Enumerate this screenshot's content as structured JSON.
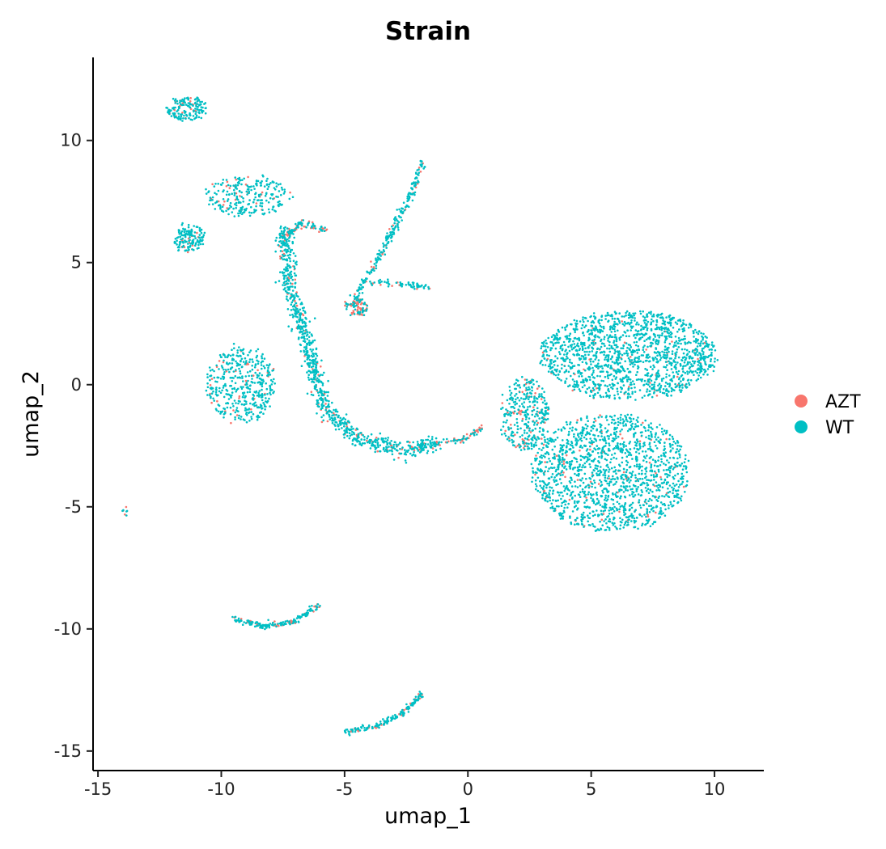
{
  "chart_data": {
    "type": "scatter",
    "title": "Strain",
    "xlabel": "umap_1",
    "ylabel": "umap_2",
    "xlim": [
      -15.2,
      12.0
    ],
    "ylim": [
      -15.8,
      13.4
    ],
    "xticks": [
      -15,
      -10,
      -5,
      0,
      5,
      10
    ],
    "xtick_labels": [
      "-15",
      "-10",
      "-5",
      "0",
      "5",
      "10"
    ],
    "yticks": [
      -15,
      -10,
      -5,
      0,
      5,
      10
    ],
    "ytick_labels": [
      "-15",
      "-10",
      "-5",
      "0",
      "5",
      "10"
    ],
    "grid": false,
    "legend_position": "right",
    "series": [
      {
        "name": "AZT",
        "color": "#F8766D"
      },
      {
        "name": "WT",
        "color": "#00BFC4"
      }
    ],
    "clusters": [
      {
        "name": "top-left-upper",
        "cx": -11.4,
        "cy": 11.3,
        "rx": 0.8,
        "ry": 0.5,
        "n": 160,
        "azt": 0.12
      },
      {
        "name": "top-left-middle",
        "cx": -8.9,
        "cy": 7.7,
        "rx": 1.8,
        "ry": 0.8,
        "n": 260,
        "azt": 0.1
      },
      {
        "name": "top-left-lower",
        "cx": -11.3,
        "cy": 6.0,
        "rx": 0.6,
        "ry": 0.6,
        "n": 140,
        "azt": 0.08
      },
      {
        "name": "left-blob",
        "cx": -9.2,
        "cy": 0.0,
        "rx": 1.4,
        "ry": 1.6,
        "n": 420,
        "azt": 0.1
      },
      {
        "name": "center-small",
        "cx": -4.5,
        "cy": 3.2,
        "rx": 0.45,
        "ry": 0.35,
        "n": 90,
        "azt": 0.5
      },
      {
        "name": "right-mass-upper",
        "cx": 6.5,
        "cy": 1.2,
        "rx": 3.6,
        "ry": 1.8,
        "n": 1500,
        "azt": 0.03
      },
      {
        "name": "right-mass-lower",
        "cx": 5.8,
        "cy": -3.6,
        "rx": 3.2,
        "ry": 2.4,
        "n": 1500,
        "azt": 0.04
      },
      {
        "name": "right-mass-left",
        "cx": 2.3,
        "cy": -1.2,
        "rx": 1.0,
        "ry": 1.5,
        "n": 350,
        "azt": 0.15
      },
      {
        "name": "isolated-point",
        "cx": -13.9,
        "cy": -5.2,
        "rx": 0.06,
        "ry": 0.12,
        "n": 8,
        "azt": 0.3
      }
    ],
    "paths": [
      {
        "name": "central-arc",
        "points": [
          [
            -7.5,
            6.3
          ],
          [
            -7.2,
            4.0
          ],
          [
            -6.5,
            1.5
          ],
          [
            -5.8,
            -1.0
          ],
          [
            -4.5,
            -2.2
          ],
          [
            -2.5,
            -2.7
          ],
          [
            -1.3,
            -2.4
          ]
        ],
        "width": 0.35,
        "n": 900,
        "azt": 0.1
      },
      {
        "name": "arc-top",
        "points": [
          [
            -7.5,
            6.0
          ],
          [
            -6.8,
            6.6
          ],
          [
            -5.8,
            6.3
          ]
        ],
        "width": 0.15,
        "n": 90,
        "azt": 0.35
      },
      {
        "name": "upper-streak",
        "points": [
          [
            -4.6,
            3.5
          ],
          [
            -3.3,
            5.8
          ],
          [
            -2.3,
            7.8
          ],
          [
            -1.8,
            9.2
          ]
        ],
        "width": 0.15,
        "n": 230,
        "azt": 0.12
      },
      {
        "name": "side-branch",
        "points": [
          [
            -4.0,
            4.2
          ],
          [
            -2.5,
            4.1
          ],
          [
            -1.6,
            4.0
          ]
        ],
        "width": 0.12,
        "n": 60,
        "azt": 0.2
      },
      {
        "name": "bridge",
        "points": [
          [
            -1.3,
            -2.4
          ],
          [
            -0.2,
            -2.25
          ],
          [
            0.6,
            -1.7
          ]
        ],
        "width": 0.12,
        "n": 70,
        "azt": 0.5
      },
      {
        "name": "bottom-arc",
        "points": [
          [
            -9.5,
            -9.6
          ],
          [
            -8.3,
            -9.9
          ],
          [
            -7.0,
            -9.7
          ],
          [
            -6.0,
            -9.0
          ]
        ],
        "width": 0.12,
        "n": 180,
        "azt": 0.2
      },
      {
        "name": "bottom-streak",
        "points": [
          [
            -5.0,
            -14.2
          ],
          [
            -3.8,
            -14.0
          ],
          [
            -2.7,
            -13.5
          ],
          [
            -1.8,
            -12.6
          ]
        ],
        "width": 0.12,
        "n": 170,
        "azt": 0.15
      }
    ]
  }
}
